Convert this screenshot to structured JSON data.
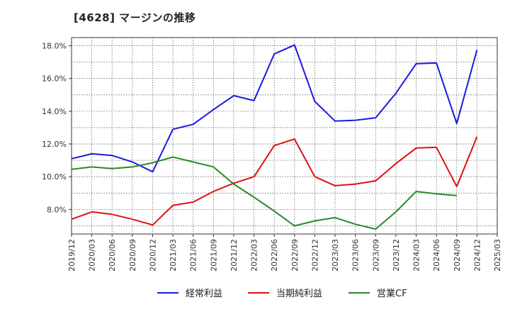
{
  "chart_data": {
    "type": "line",
    "title": "[4628]  マージンの推移",
    "x": [
      "2019/12",
      "2020/03",
      "2020/06",
      "2020/09",
      "2020/12",
      "2021/03",
      "2021/06",
      "2021/09",
      "2021/12",
      "2022/03",
      "2022/06",
      "2022/09",
      "2022/12",
      "2023/03",
      "2023/06",
      "2023/09",
      "2023/12",
      "2024/03",
      "2024/06",
      "2024/09",
      "2024/12",
      "2025/03"
    ],
    "ylim": [
      6.5,
      18.5
    ],
    "yticks": [
      8.0,
      10.0,
      12.0,
      14.0,
      16.0,
      18.0
    ],
    "ytick_labels": [
      "8.0%",
      "10.0%",
      "12.0%",
      "14.0%",
      "16.0%",
      "18.0%"
    ],
    "grid": true,
    "legend_position": "bottom",
    "series": [
      {
        "name": "経常利益",
        "color": "#1a1adf",
        "values": [
          11.1,
          11.4,
          11.3,
          10.9,
          10.3,
          12.9,
          13.2,
          14.1,
          14.95,
          14.65,
          17.5,
          18.05,
          14.6,
          13.4,
          13.45,
          13.6,
          15.1,
          16.9,
          16.95,
          13.25,
          17.75,
          null
        ]
      },
      {
        "name": "当期純利益",
        "color": "#e01010",
        "values": [
          7.4,
          7.85,
          7.7,
          7.4,
          7.05,
          8.25,
          8.45,
          9.1,
          9.6,
          10.0,
          11.9,
          12.3,
          10.0,
          9.45,
          9.55,
          9.75,
          10.8,
          11.75,
          11.8,
          9.4,
          12.45,
          null
        ]
      },
      {
        "name": "営業CF",
        "color": "#2a8a2a",
        "values": [
          10.45,
          10.6,
          10.5,
          10.6,
          10.85,
          11.2,
          10.9,
          10.6,
          9.55,
          8.75,
          7.9,
          7.0,
          7.3,
          7.5,
          7.1,
          6.8,
          7.85,
          9.1,
          8.95,
          8.85,
          null,
          null
        ]
      }
    ]
  }
}
